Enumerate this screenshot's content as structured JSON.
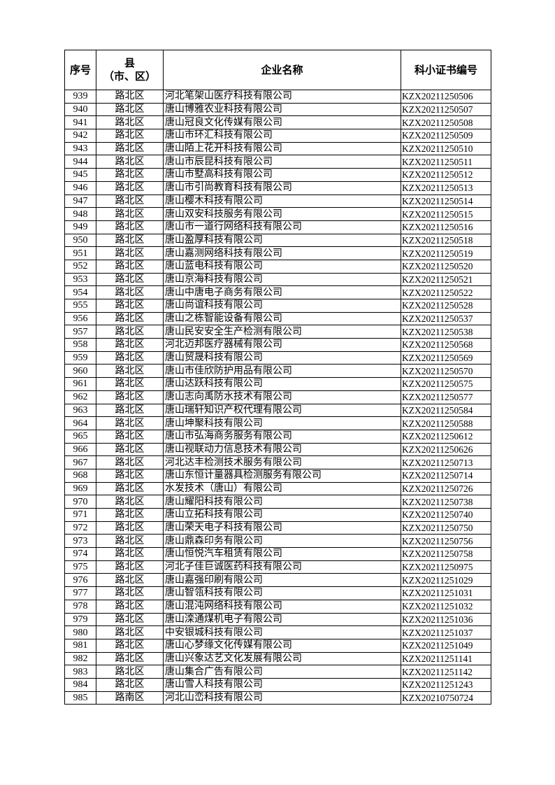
{
  "table": {
    "headers": {
      "no": "序号",
      "district_line1": "县",
      "district_line2": "（市、区）",
      "name": "企业名称",
      "code": "科小证书编号"
    },
    "rows": [
      [
        "939",
        "路北区",
        "河北笔架山医疗科技有限公司",
        "KZX20211250506"
      ],
      [
        "940",
        "路北区",
        "唐山博雅农业科技有限公司",
        "KZX20211250507"
      ],
      [
        "941",
        "路北区",
        "唐山冠良文化传媒有限公司",
        "KZX20211250508"
      ],
      [
        "942",
        "路北区",
        "唐山市环汇科技有限公司",
        "KZX20211250509"
      ],
      [
        "943",
        "路北区",
        "唐山陌上花开科技有限公司",
        "KZX20211250510"
      ],
      [
        "944",
        "路北区",
        "唐山市辰昆科技有限公司",
        "KZX20211250511"
      ],
      [
        "945",
        "路北区",
        "唐山市墅高科技有限公司",
        "KZX20211250512"
      ],
      [
        "946",
        "路北区",
        "唐山市引尚教育科技有限公司",
        "KZX20211250513"
      ],
      [
        "947",
        "路北区",
        "唐山樱木科技有限公司",
        "KZX20211250514"
      ],
      [
        "948",
        "路北区",
        "唐山双安科技服务有限公司",
        "KZX20211250515"
      ],
      [
        "949",
        "路北区",
        "唐山市一道行网络科技有限公司",
        "KZX20211250516"
      ],
      [
        "950",
        "路北区",
        "唐山盈厚科技有限公司",
        "KZX20211250518"
      ],
      [
        "951",
        "路北区",
        "唐山嘉测网络科技有限公司",
        "KZX20211250519"
      ],
      [
        "952",
        "路北区",
        "唐山蓝电科技有限公司",
        "KZX20211250520"
      ],
      [
        "953",
        "路北区",
        "唐山京海科技有限公司",
        "KZX20211250521"
      ],
      [
        "954",
        "路北区",
        "唐山中唐电子商务有限公司",
        "KZX20211250522"
      ],
      [
        "955",
        "路北区",
        "唐山尚谊科技有限公司",
        "KZX20211250528"
      ],
      [
        "956",
        "路北区",
        "唐山之栋智能设备有限公司",
        "KZX20211250537"
      ],
      [
        "957",
        "路北区",
        "唐山民安安全生产检测有限公司",
        "KZX20211250538"
      ],
      [
        "958",
        "路北区",
        "河北迈邦医疗器械有限公司",
        "KZX20211250568"
      ],
      [
        "959",
        "路北区",
        "唐山贸晟科技有限公司",
        "KZX20211250569"
      ],
      [
        "960",
        "路北区",
        "唐山市佳欣防护用品有限公司",
        "KZX20211250570"
      ],
      [
        "961",
        "路北区",
        "唐山达跃科技有限公司",
        "KZX20211250575"
      ],
      [
        "962",
        "路北区",
        "唐山志向禹防水技术有限公司",
        "KZX20211250577"
      ],
      [
        "963",
        "路北区",
        "唐山瑞轩知识产权代理有限公司",
        "KZX20211250584"
      ],
      [
        "964",
        "路北区",
        "唐山坤聚科技有限公司",
        "KZX20211250588"
      ],
      [
        "965",
        "路北区",
        "唐山市弘海商务服务有限公司",
        "KZX20211250612"
      ],
      [
        "966",
        "路北区",
        "唐山视联动力信息技术有限公司",
        "KZX20211250626"
      ],
      [
        "967",
        "路北区",
        "河北达丰检测技术服务有限公司",
        "KZX20211250713"
      ],
      [
        "968",
        "路北区",
        "唐山东恒计量器具检测服务有限公司",
        "KZX20211250714"
      ],
      [
        "969",
        "路北区",
        "水发技术（唐山）有限公司",
        "KZX20211250726"
      ],
      [
        "970",
        "路北区",
        "唐山耀阳科技有限公司",
        "KZX20211250738"
      ],
      [
        "971",
        "路北区",
        "唐山立拓科技有限公司",
        "KZX20211250740"
      ],
      [
        "972",
        "路北区",
        "唐山荣天电子科技有限公司",
        "KZX20211250750"
      ],
      [
        "973",
        "路北区",
        "唐山鼎森印务有限公司",
        "KZX20211250756"
      ],
      [
        "974",
        "路北区",
        "唐山恒悦汽车租赁有限公司",
        "KZX20211250758"
      ],
      [
        "975",
        "路北区",
        "河北子佳巨诚医药科技有限公司",
        "KZX20211250975"
      ],
      [
        "976",
        "路北区",
        "唐山嘉强印刷有限公司",
        "KZX20211251029"
      ],
      [
        "977",
        "路北区",
        "唐山智瓴科技有限公司",
        "KZX20211251031"
      ],
      [
        "978",
        "路北区",
        "唐山混沌网络科技有限公司",
        "KZX20211251032"
      ],
      [
        "979",
        "路北区",
        "唐山滦通煤机电子有限公司",
        "KZX20211251036"
      ],
      [
        "980",
        "路北区",
        "中安银城科技有限公司",
        "KZX20211251037"
      ],
      [
        "981",
        "路北区",
        "唐山心梦缘文化传媒有限公司",
        "KZX20211251049"
      ],
      [
        "982",
        "路北区",
        "唐山兴象达艺文化发展有限公司",
        "KZX20211251141"
      ],
      [
        "983",
        "路北区",
        "唐山集合广告有限公司",
        "KZX20211251142"
      ],
      [
        "984",
        "路北区",
        "唐山雪人科技有限公司",
        "KZX20211251243"
      ],
      [
        "985",
        "路南区",
        "河北山峦科技有限公司",
        "KZX20210750724"
      ]
    ]
  }
}
